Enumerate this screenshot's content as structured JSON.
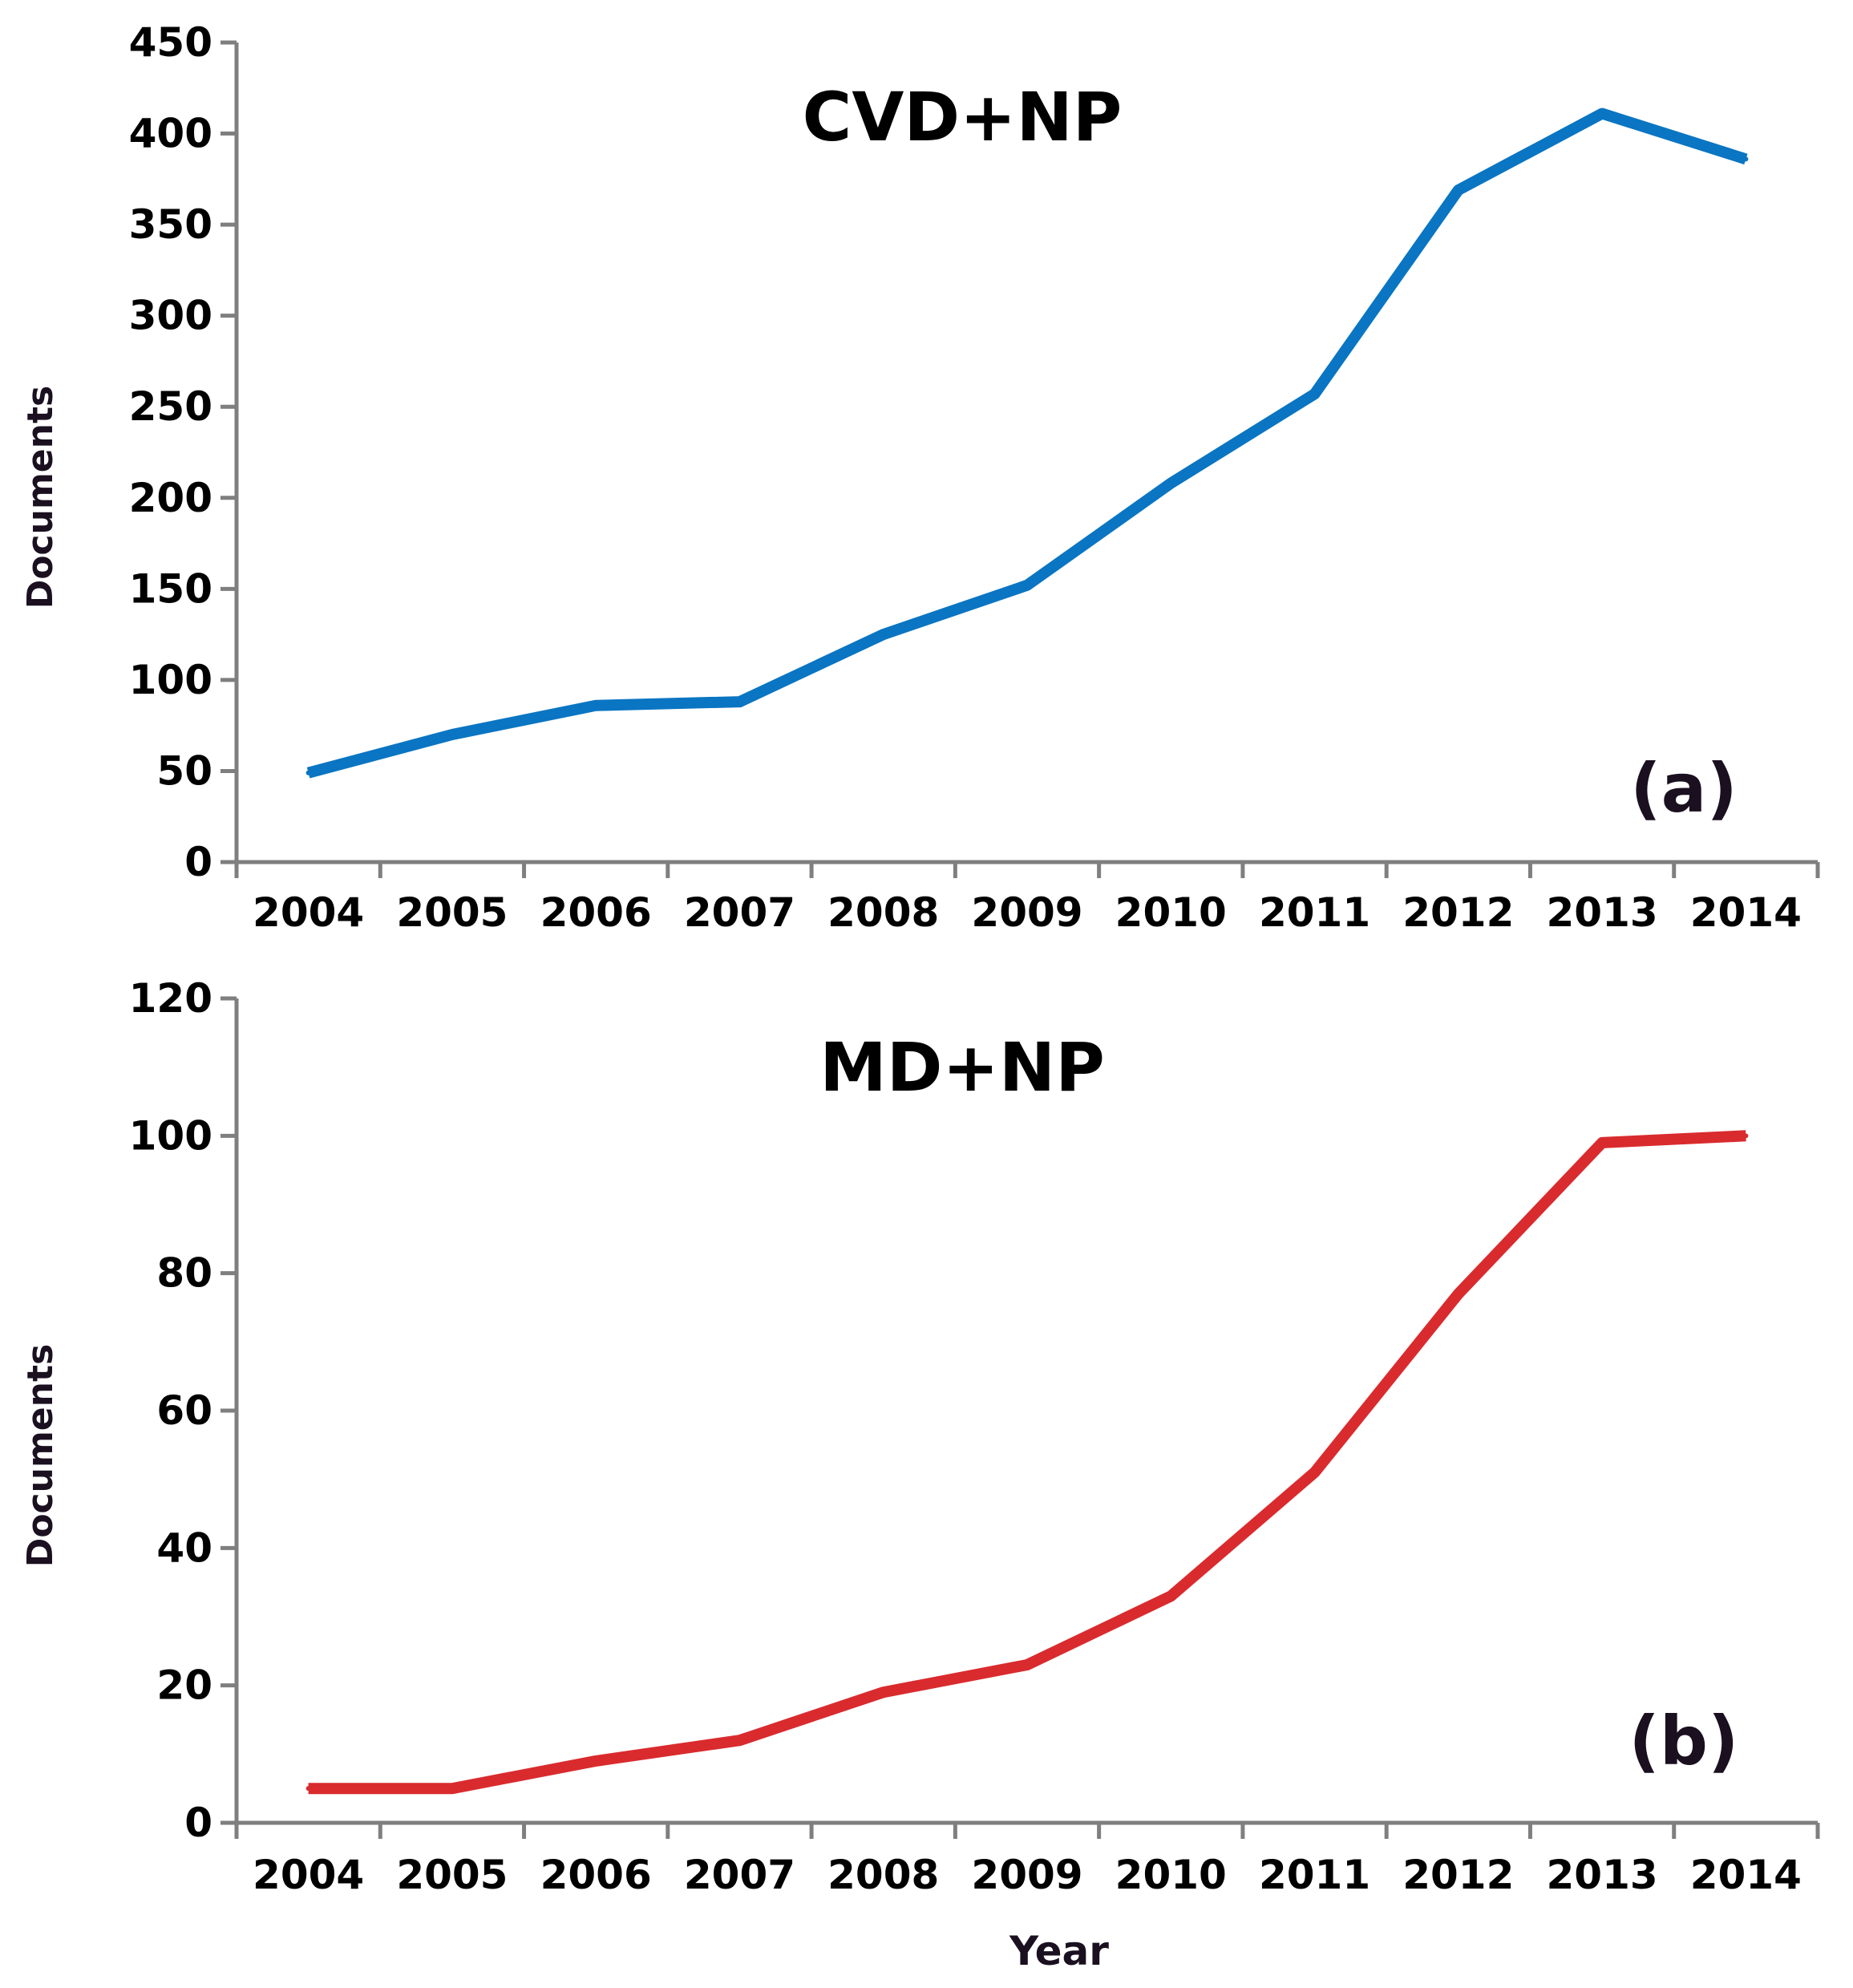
{
  "chart_data": [
    {
      "type": "line",
      "title": "CVD+NP",
      "panel_label": "(a)",
      "xlabel": "",
      "ylabel": "Documents",
      "categories": [
        "2004",
        "2005",
        "2006",
        "2007",
        "2008",
        "2009",
        "2010",
        "2011",
        "2012",
        "2013",
        "2014"
      ],
      "series": [
        {
          "name": "CVD+NP",
          "color": "#0a75c2",
          "values": [
            49,
            70,
            86,
            88,
            125,
            152,
            208,
            257,
            369,
            411,
            386
          ]
        }
      ],
      "ylim": [
        0,
        450
      ],
      "yticks": [
        0,
        50,
        100,
        150,
        200,
        250,
        300,
        350,
        400,
        450
      ],
      "grid": false
    },
    {
      "type": "line",
      "title": "MD+NP",
      "panel_label": "(b)",
      "xlabel": "Year",
      "ylabel": "Documents",
      "categories": [
        "2004",
        "2005",
        "2006",
        "2007",
        "2008",
        "2009",
        "2010",
        "2011",
        "2012",
        "2013",
        "2014"
      ],
      "series": [
        {
          "name": "MD+NP",
          "color": "#d92b2e",
          "values": [
            5,
            5,
            9,
            12,
            19,
            23,
            33,
            51,
            77,
            99,
            100
          ]
        }
      ],
      "ylim": [
        0,
        120
      ],
      "yticks": [
        0,
        20,
        40,
        60,
        80,
        100,
        120
      ],
      "grid": false
    }
  ]
}
